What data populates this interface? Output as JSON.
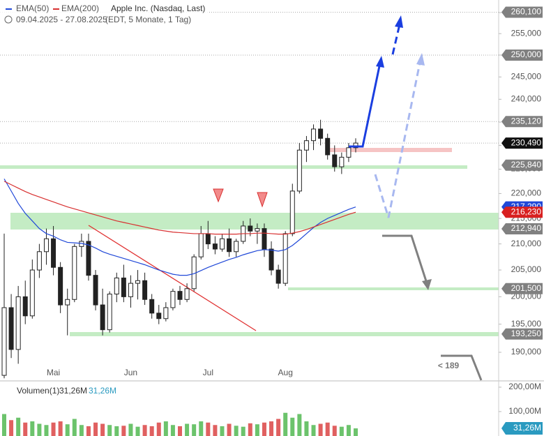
{
  "chart_data": {
    "type": "candlestick",
    "title": "Apple Inc. (Nasdaq, Last)",
    "subtitle": "09.04.2025 - 27.08.2025",
    "period": "(EDT, 5 Monate, 1 Tag)",
    "log_scale": true,
    "up_color": "#ffffff",
    "down_color": "#222222",
    "categories": [
      null,
      null,
      null,
      null,
      null,
      null,
      null,
      "Mai",
      null,
      null,
      null,
      null,
      null,
      null,
      null,
      null,
      null,
      null,
      "Jun",
      null,
      null,
      null,
      null,
      null,
      null,
      null,
      null,
      null,
      null,
      "Jul",
      null,
      null,
      null,
      null,
      null,
      null,
      null,
      null,
      null,
      null,
      "Aug",
      null,
      null,
      null,
      null,
      null,
      null,
      null,
      null,
      null,
      null
    ],
    "open": [
      186000,
      198000,
      190500,
      200000,
      196500,
      205000,
      208500,
      211000,
      205500,
      198500,
      199500,
      209500,
      210500,
      204000,
      198500,
      194000,
      200500,
      203500,
      200000,
      202500,
      203000,
      199500,
      197000,
      196000,
      198000,
      201000,
      199500,
      201500,
      207500,
      212000,
      210000,
      209000,
      211000,
      208500,
      210500,
      213500,
      212500,
      213000,
      209000,
      205000,
      202500,
      212000,
      220500,
      229000,
      231000,
      233500,
      231500,
      228000,
      225500,
      227500,
      229500
    ],
    "high": [
      212000,
      200500,
      202000,
      203000,
      207000,
      210000,
      213000,
      213500,
      206500,
      201500,
      210000,
      212000,
      212000,
      205000,
      201500,
      201000,
      204500,
      206000,
      204000,
      205000,
      204500,
      200500,
      198500,
      199000,
      201500,
      202000,
      202500,
      208000,
      213500,
      214500,
      211500,
      212000,
      213000,
      211000,
      214500,
      215000,
      214000,
      214000,
      210500,
      206000,
      212500,
      222000,
      230500,
      232000,
      234500,
      235500,
      232500,
      230000,
      228500,
      230500,
      231500
    ],
    "low": [
      185500,
      189000,
      188000,
      195000,
      196000,
      203500,
      206000,
      204000,
      197000,
      193000,
      199000,
      207500,
      203000,
      197500,
      193000,
      193500,
      199000,
      199000,
      198000,
      199500,
      198500,
      196000,
      195000,
      195500,
      197500,
      198500,
      199000,
      201000,
      207000,
      209000,
      208000,
      208500,
      207500,
      207500,
      210000,
      211500,
      210000,
      207500,
      204000,
      201500,
      202000,
      211500,
      220000,
      226500,
      229000,
      230000,
      227000,
      224500,
      224000,
      226500,
      228500
    ],
    "close": [
      198000,
      190500,
      200000,
      196500,
      205000,
      208500,
      211000,
      205500,
      198500,
      199500,
      209500,
      210500,
      204000,
      198500,
      194000,
      200500,
      203500,
      200000,
      202500,
      203000,
      199500,
      197000,
      196000,
      198000,
      201000,
      199500,
      201500,
      207500,
      212000,
      210000,
      209000,
      211000,
      208500,
      210500,
      213500,
      212500,
      213000,
      209000,
      205000,
      202500,
      212000,
      220500,
      229000,
      231000,
      233500,
      231500,
      228000,
      225500,
      227500,
      229500,
      230490
    ],
    "ylim": [
      185170,
      263040
    ],
    "yticks": [
      {
        "value": 190000,
        "label": "190,000"
      },
      {
        "value": 195000,
        "label": "195,000"
      },
      {
        "value": 200000,
        "label": "200,000"
      },
      {
        "value": 205000,
        "label": "205,000"
      },
      {
        "value": 210000,
        "label": "210,000"
      },
      {
        "value": 215000,
        "label": "215,000"
      },
      {
        "value": 220000,
        "label": "220,000"
      },
      {
        "value": 225000,
        "label": "225,000"
      },
      {
        "value": 230000,
        "label": "230,000"
      },
      {
        "value": 235000,
        "label": "235,000"
      },
      {
        "value": 240000,
        "label": "240,000"
      },
      {
        "value": 245000,
        "label": "245,000"
      },
      {
        "value": 250000,
        "label": "250,000"
      },
      {
        "value": 255000,
        "label": "255,000"
      },
      {
        "value": 260000,
        "label": "260,000"
      }
    ],
    "overlays": [
      {
        "name": "EMA(50)",
        "color": "#2048d8",
        "values": [
          223000,
          220500,
          218000,
          216000,
          214500,
          213000,
          212000,
          211500,
          210800,
          210300,
          210200,
          210100,
          209800,
          209200,
          208500,
          208000,
          207600,
          207200,
          206800,
          206400,
          206000,
          205500,
          205000,
          204600,
          204200,
          204000,
          204000,
          204300,
          204900,
          205500,
          206000,
          206500,
          207000,
          207400,
          207900,
          208300,
          208700,
          208900,
          208800,
          208600,
          208900,
          209700,
          210800,
          212000,
          213200,
          214200,
          215000,
          215600,
          216200,
          216800,
          217290
        ]
      },
      {
        "name": "EMA(200)",
        "color": "#d83030",
        "values": [
          222500,
          221800,
          221100,
          220400,
          219800,
          219300,
          218800,
          218300,
          217800,
          217300,
          216900,
          216500,
          216100,
          215700,
          215300,
          214900,
          214500,
          214200,
          213900,
          213600,
          213300,
          213000,
          212700,
          212500,
          212300,
          212200,
          212100,
          212000,
          212000,
          212000,
          211900,
          211900,
          211900,
          211900,
          212000,
          212000,
          212100,
          212100,
          212000,
          211900,
          211900,
          212100,
          212400,
          212800,
          213300,
          213800,
          214300,
          214800,
          215300,
          215800,
          216230
        ]
      }
    ],
    "levels": [
      {
        "value": 260100,
        "label": "260,100",
        "color": "#808080",
        "dotted": true
      },
      {
        "value": 250000,
        "label": "250,000",
        "color": "#808080",
        "dotted": true
      },
      {
        "value": 235120,
        "label": "235,120",
        "color": "#808080",
        "dotted": true
      },
      {
        "value": 230490,
        "label": "230,490",
        "color": "#111111",
        "dotted": true
      },
      {
        "value": 225840,
        "label": "225,840",
        "color": "#808080",
        "dotted": false
      },
      {
        "value": 217290,
        "label": "217,290",
        "color": "#2048d8",
        "dotted": false
      },
      {
        "value": 216230,
        "label": "216,230",
        "color": "#d82020",
        "dotted": false
      },
      {
        "value": 212940,
        "label": "212,940",
        "color": "#808080",
        "dotted": false
      },
      {
        "value": 201500,
        "label": "201,500",
        "color": "#808080",
        "dotted": false
      },
      {
        "value": 193250,
        "label": "193,250",
        "color": "#808080",
        "dotted": false
      }
    ],
    "annotations": [
      "< 189"
    ],
    "volume": {
      "title": "Volumen(1)",
      "up_color": "#6cc36c",
      "down_color": "#e06060",
      "values": [
        90000000,
        65000000,
        75000000,
        55000000,
        60000000,
        50000000,
        45000000,
        55000000,
        60000000,
        48000000,
        70000000,
        45000000,
        40000000,
        55000000,
        50000000,
        45000000,
        40000000,
        42000000,
        50000000,
        38000000,
        45000000,
        40000000,
        55000000,
        60000000,
        45000000,
        40000000,
        50000000,
        48000000,
        60000000,
        55000000,
        45000000,
        40000000,
        50000000,
        42000000,
        38000000,
        52000000,
        48000000,
        55000000,
        60000000,
        70000000,
        95000000,
        75000000,
        90000000,
        60000000,
        45000000,
        50000000,
        55000000,
        42000000,
        38000000,
        45000000,
        31260000
      ],
      "last_label": "31,26M",
      "ylim": [
        0,
        220000000
      ],
      "yticks": [
        {
          "value": 100000000,
          "label": "100,00M"
        },
        {
          "value": 200000000,
          "label": "200,00M"
        }
      ]
    }
  }
}
